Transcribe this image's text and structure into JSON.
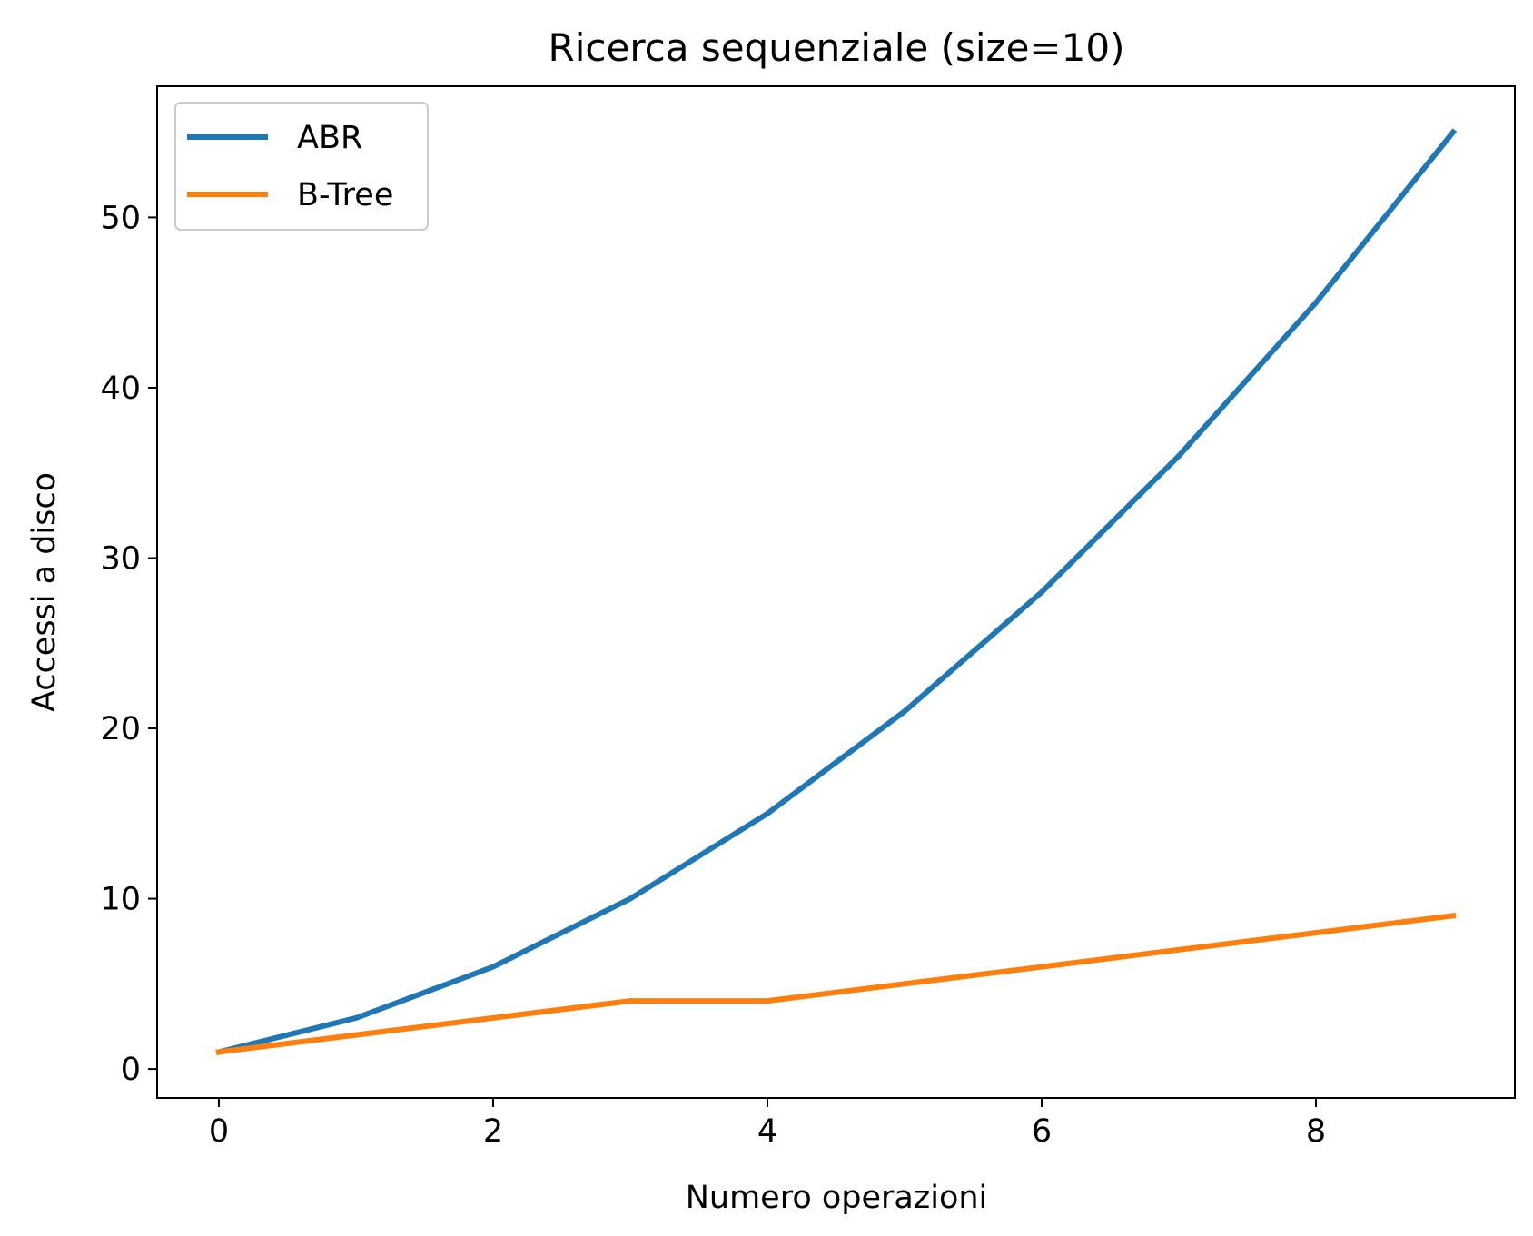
{
  "chart_data": {
    "type": "line",
    "title": "Ricerca sequenziale (size=10)",
    "xlabel": "Numero operazioni",
    "ylabel": "Accessi a disco",
    "x": [
      0,
      1,
      2,
      3,
      4,
      5,
      6,
      7,
      8,
      9
    ],
    "xlim": [
      -0.45,
      9.45
    ],
    "ylim": [
      -1.7,
      57.7
    ],
    "xticks": [
      0,
      2,
      4,
      6,
      8
    ],
    "yticks": [
      0,
      10,
      20,
      30,
      40,
      50
    ],
    "grid": false,
    "legend_position": "top-left",
    "series": [
      {
        "name": "ABR",
        "color": "#1f77b4",
        "values": [
          1,
          3,
          6,
          10,
          15,
          21,
          28,
          36,
          45,
          55
        ]
      },
      {
        "name": "B-Tree",
        "color": "#ff7f0e",
        "values": [
          1,
          2,
          3,
          4,
          4,
          5,
          6,
          7,
          8,
          9
        ]
      }
    ]
  }
}
